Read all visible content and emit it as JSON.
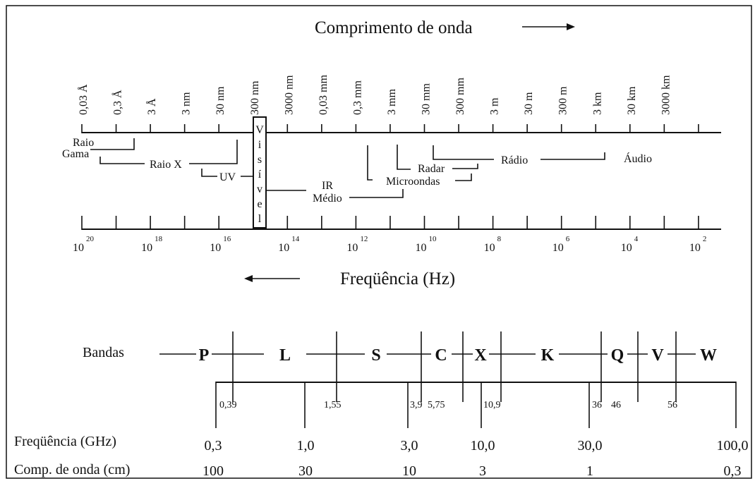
{
  "title": "Comprimento de onda",
  "frequency_title": "Freqüência (Hz)",
  "wavelength_ticks": [
    "0,03 Å",
    "0,3 Å",
    "3 Å",
    "3 nm",
    "30 nm",
    "300 nm",
    "3000 nm",
    "0,03 mm",
    "0,3 mm",
    "3 mm",
    "30 mm",
    "300 mm",
    "3 m",
    "30 m",
    "300 m",
    "3 km",
    "30 km",
    "3000 km"
  ],
  "frequency_labels": [
    {
      "base": "10",
      "exp": "20"
    },
    {
      "base": "10",
      "exp": "18"
    },
    {
      "base": "10",
      "exp": "16"
    },
    {
      "base": "10",
      "exp": "14"
    },
    {
      "base": "10",
      "exp": "12"
    },
    {
      "base": "10",
      "exp": "10"
    },
    {
      "base": "10",
      "exp": "8"
    },
    {
      "base": "10",
      "exp": "6"
    },
    {
      "base": "10",
      "exp": "4"
    },
    {
      "base": "10",
      "exp": "2"
    }
  ],
  "regions": {
    "gamma_1": "Raio",
    "gamma_2": "Gama",
    "xray": "Raio X",
    "uv": "UV",
    "visible_letters": [
      "V",
      "i",
      "s",
      "í",
      "v",
      "e",
      "l"
    ],
    "ir_1": "IR",
    "ir_2": "Médio",
    "radar": "Radar",
    "microwaves": "Microondas",
    "radio": "Rádio",
    "audio": "Áudio"
  },
  "bands": {
    "label": "Bandas",
    "names": [
      "P",
      "L",
      "S",
      "C",
      "X",
      "K",
      "Q",
      "V",
      "W"
    ],
    "freq_ticks": [
      "0,39",
      "1,55",
      "3,9",
      "5,75",
      "10,9",
      "36",
      "46",
      "56"
    ]
  },
  "bottom_rows": {
    "freq_label": "Freqüência (GHz)",
    "freq_values": [
      "0,3",
      "1,0",
      "3,0",
      "10,0",
      "30,0",
      "100,0"
    ],
    "wave_label": "Comp. de onda (cm)",
    "wave_values": [
      "100",
      "30",
      "10",
      "3",
      "1",
      "0,3"
    ]
  }
}
